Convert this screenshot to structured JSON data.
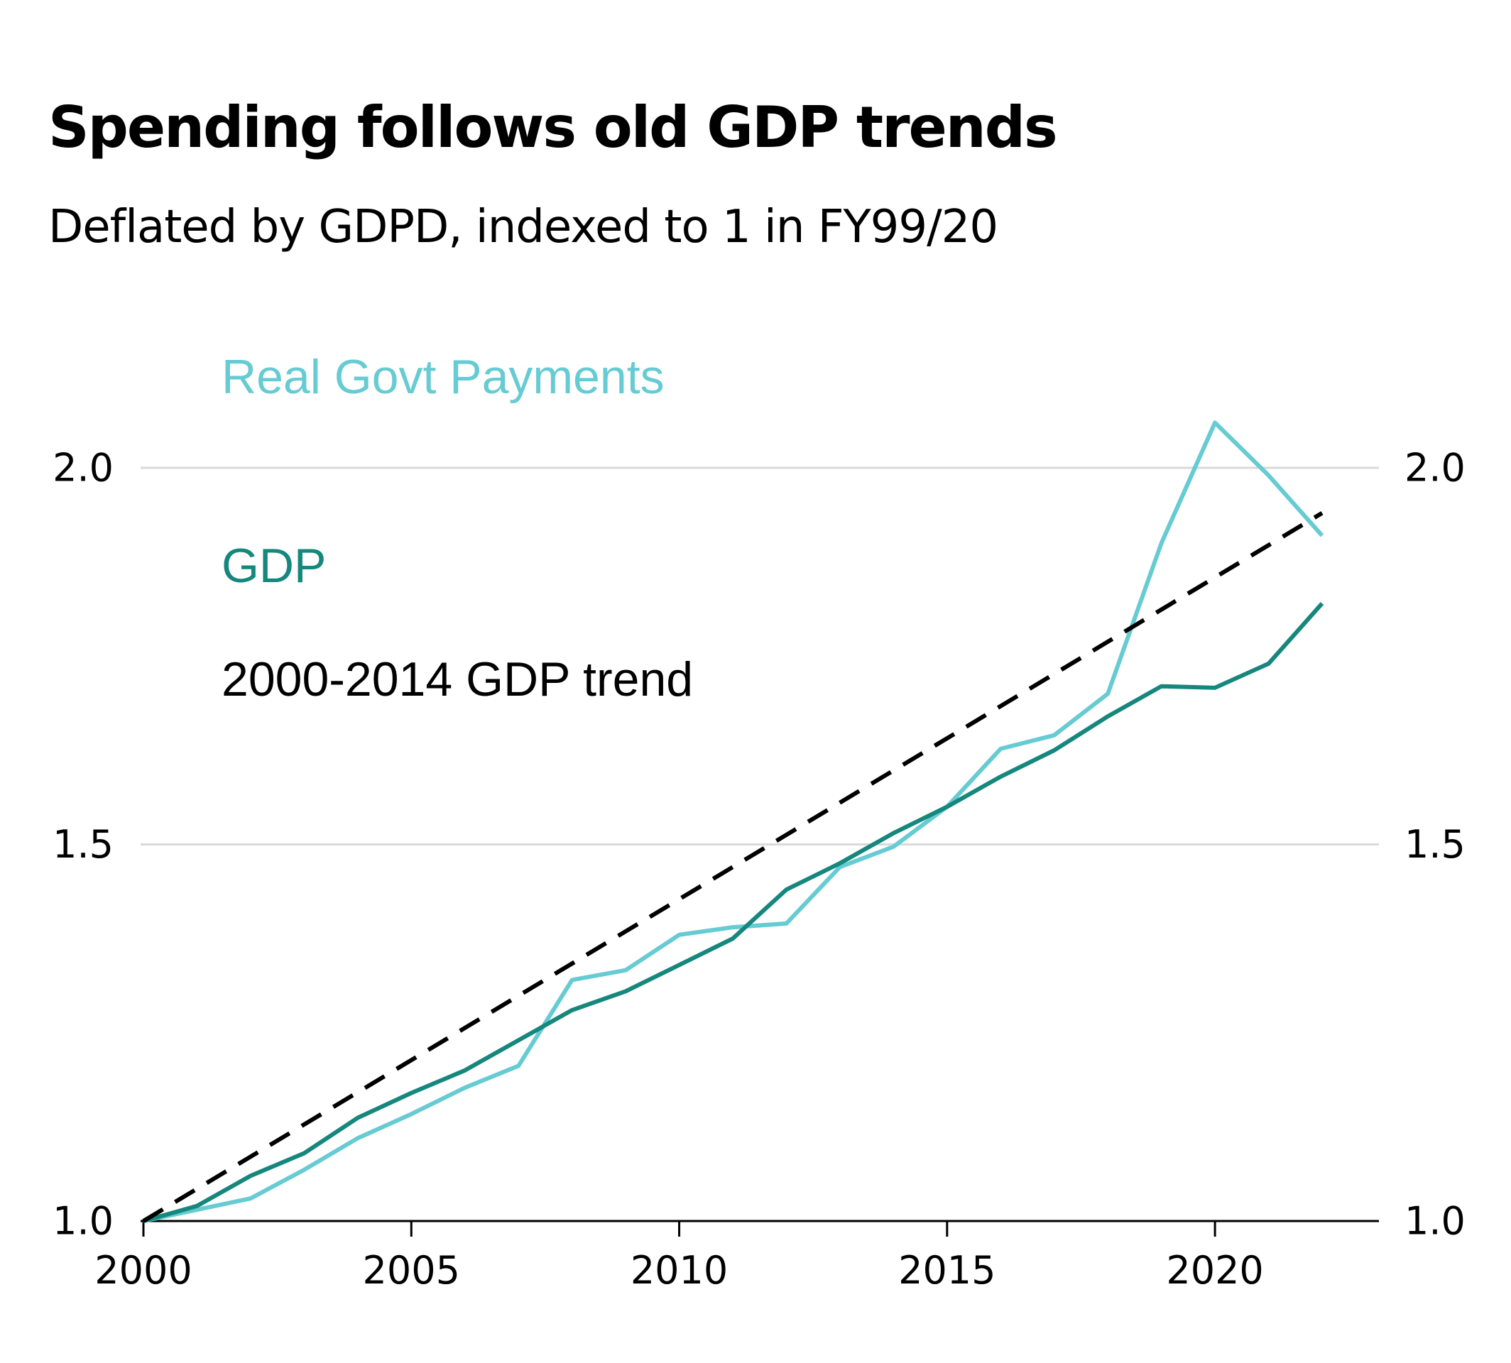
{
  "chart_data": {
    "type": "line",
    "title": "Spending follows old GDP trends",
    "subtitle": "Deflated by GDPD, indexed to 1 in FY99/20",
    "xlabel": "",
    "ylabel": "",
    "x": [
      2000,
      2001,
      2002,
      2003,
      2004,
      2005,
      2006,
      2007,
      2008,
      2009,
      2010,
      2011,
      2012,
      2013,
      2014,
      2015,
      2016,
      2017,
      2018,
      2019,
      2020,
      2021,
      2022
    ],
    "series": [
      {
        "name": "Real Govt Payments",
        "color": "#66cbd3",
        "style": "solid",
        "values": [
          1.0,
          1.015,
          1.03,
          1.068,
          1.11,
          1.142,
          1.177,
          1.206,
          1.32,
          1.333,
          1.38,
          1.39,
          1.395,
          1.47,
          1.497,
          1.55,
          1.627,
          1.645,
          1.7,
          1.9,
          2.06,
          1.99,
          1.91
        ]
      },
      {
        "name": "GDP",
        "color": "#15877d",
        "style": "solid",
        "values": [
          1.0,
          1.02,
          1.06,
          1.09,
          1.137,
          1.17,
          1.2,
          1.24,
          1.28,
          1.305,
          1.34,
          1.375,
          1.44,
          1.475,
          1.515,
          1.55,
          1.59,
          1.625,
          1.67,
          1.71,
          1.708,
          1.74,
          1.82
        ]
      },
      {
        "name": "2000-2014 GDP trend",
        "color": "#000000",
        "style": "dashed",
        "x": [
          2000,
          2022
        ],
        "values": [
          1.0,
          1.94
        ]
      }
    ],
    "xticks": [
      2000,
      2005,
      2010,
      2015,
      2020
    ],
    "xtick_labels": [
      "2000",
      "2005",
      "2010",
      "2015",
      "2020"
    ],
    "yticks": [
      1.0,
      1.5,
      2.0
    ],
    "ytick_labels": [
      "1.0",
      "1.5",
      "2.0"
    ],
    "xlim": [
      1998.9,
      2023.1
    ],
    "ylim": [
      1.0,
      2.0
    ],
    "grid": "horizontal",
    "y_axis_labels": "both sides",
    "legend": "top-left inline text labels"
  }
}
